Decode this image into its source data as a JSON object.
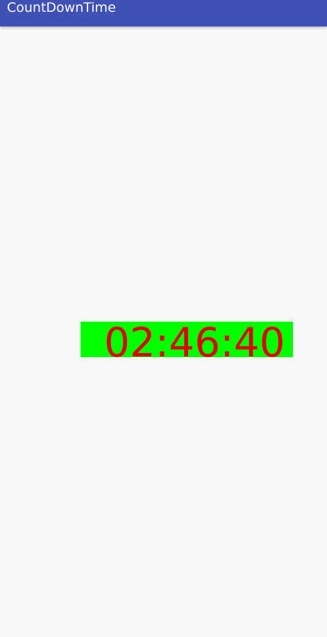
{
  "app_bar": {
    "title": "CountDownTime",
    "background_color": "#3f51b5",
    "text_color": "#ffffff"
  },
  "timer": {
    "time": "02:46:40",
    "background_color": "#00ff00",
    "text_color": "#dd0000"
  },
  "screen": {
    "background_color": "#f8f8f8"
  }
}
